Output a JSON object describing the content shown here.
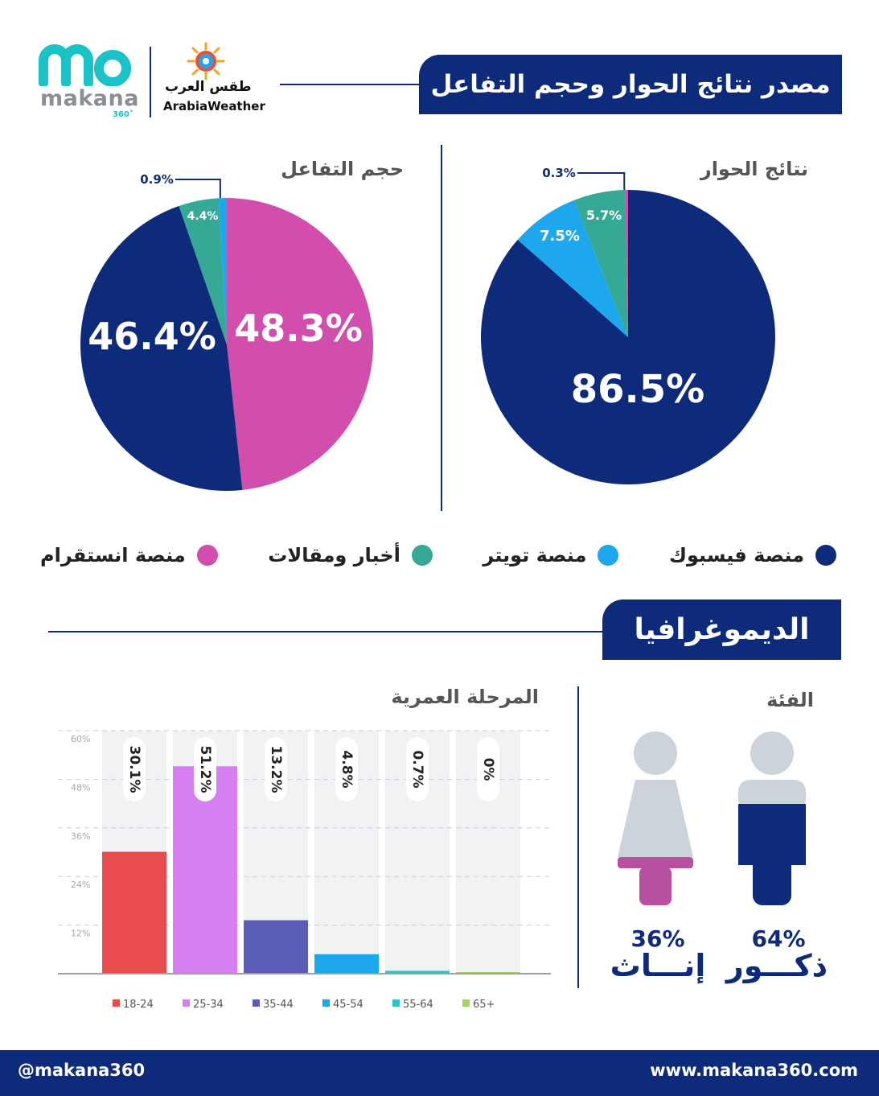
{
  "header": {
    "title": "مصدر نتائج الحوار وحجم التفاعل",
    "logo_makana": {
      "word": "makana",
      "superscript": "360˚"
    },
    "logo_arabia": {
      "arabic": "طقس العرب",
      "english": "ArabiaWeather"
    }
  },
  "legend": [
    {
      "label": "منصة فيسبوك",
      "color": "#0e2a7a"
    },
    {
      "label": "منصة تويتر",
      "color": "#1da8ee"
    },
    {
      "label": "أخبار ومقالات",
      "color": "#35a896"
    },
    {
      "label": "منصة انستقرام",
      "color": "#d14ead"
    }
  ],
  "demographics": {
    "title": "الديموغرافيا",
    "gender_title": "الفئة",
    "age_title": "المرحلة العمرية",
    "male": {
      "pct": "64%",
      "label": "ذكـــور",
      "value": 64
    },
    "female": {
      "pct": "36%",
      "label": "إنـــاث",
      "value": 36
    }
  },
  "footer": {
    "handle": "@makana360",
    "url": "www.makana360.com"
  },
  "chart_data": [
    {
      "type": "pie",
      "title": "نتائج الحوار",
      "categories": [
        "منصة فيسبوك",
        "منصة تويتر",
        "أخبار ومقالات",
        "منصة انستقرام"
      ],
      "values": [
        86.5,
        7.5,
        5.7,
        0.3
      ],
      "labels": [
        "86.5%",
        "7.5%",
        "5.7%",
        "0.3%"
      ],
      "colors": [
        "#0e2a7a",
        "#1da8ee",
        "#35a896",
        "#d14ead"
      ]
    },
    {
      "type": "pie",
      "title": "حجم التفاعل",
      "categories": [
        "منصة انستقرام",
        "منصة فيسبوك",
        "أخبار ومقالات",
        "منصة تويتر"
      ],
      "values": [
        48.3,
        46.4,
        4.4,
        0.9
      ],
      "labels": [
        "48.3%",
        "46.4%",
        "4.4%",
        "0.9%"
      ],
      "colors": [
        "#d14ead",
        "#0e2a7a",
        "#35a896",
        "#1da8ee"
      ]
    },
    {
      "type": "bar",
      "title": "المرحلة العمرية",
      "categories": [
        "18-24",
        "25-34",
        "35-44",
        "45-54",
        "55-64",
        "65+"
      ],
      "values": [
        30.1,
        51.2,
        13.2,
        4.8,
        0.7,
        0
      ],
      "labels": [
        "30.1%",
        "51.2%",
        "13.2%",
        "4.8%",
        "0.7%",
        "0%"
      ],
      "colors": [
        "#e84c4f",
        "#d57ff0",
        "#5b5bb8",
        "#1da8ee",
        "#2ec4c0",
        "#a9d160"
      ],
      "yticks": [
        "60%",
        "48%",
        "36%",
        "24%",
        "12%"
      ],
      "ytick_values": [
        60,
        48,
        36,
        24,
        12
      ],
      "ylim": [
        0,
        60
      ],
      "grid": true,
      "legend": "bottom"
    }
  ]
}
